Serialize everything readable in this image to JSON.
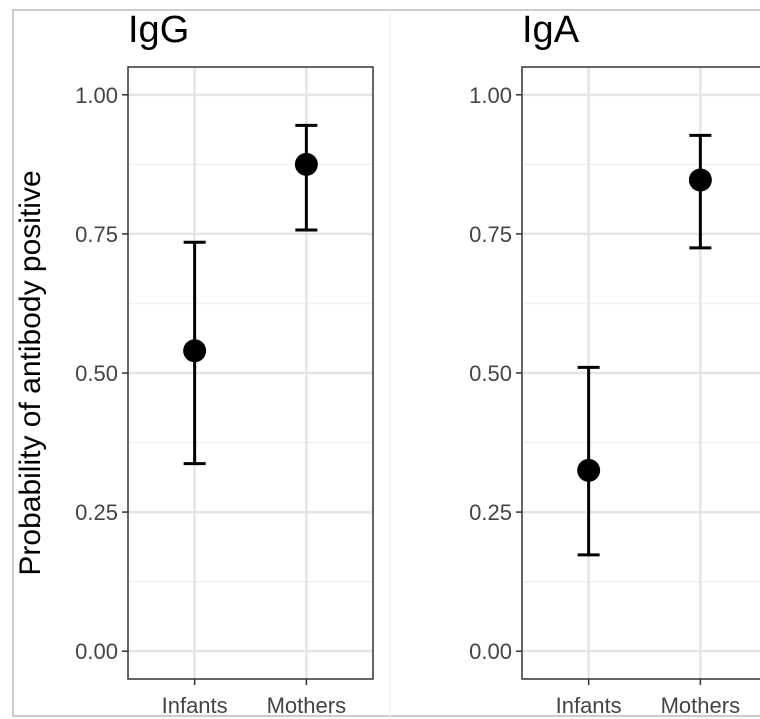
{
  "chart_data": [
    {
      "type": "scatter",
      "title": "IgG",
      "ylabel": "Probability of antibody positive",
      "categories": [
        "Infants",
        "Mothers"
      ],
      "values": [
        0.54,
        0.875
      ],
      "error_lower": [
        0.337,
        0.757
      ],
      "error_upper": [
        0.735,
        0.945
      ],
      "ylim": [
        -0.05,
        1.05
      ],
      "yticks": [
        "0.00",
        "0.25",
        "0.50",
        "0.75",
        "1.00"
      ],
      "grid": true
    },
    {
      "type": "scatter",
      "title": "IgA",
      "categories": [
        "Infants",
        "Mothers"
      ],
      "values": [
        0.325,
        0.847
      ],
      "error_lower": [
        0.173,
        0.725
      ],
      "error_upper": [
        0.51,
        0.927
      ],
      "ylim": [
        -0.05,
        1.05
      ],
      "yticks": [
        "0.00",
        "0.25",
        "0.50",
        "0.75",
        "1.00"
      ],
      "grid": true
    }
  ]
}
